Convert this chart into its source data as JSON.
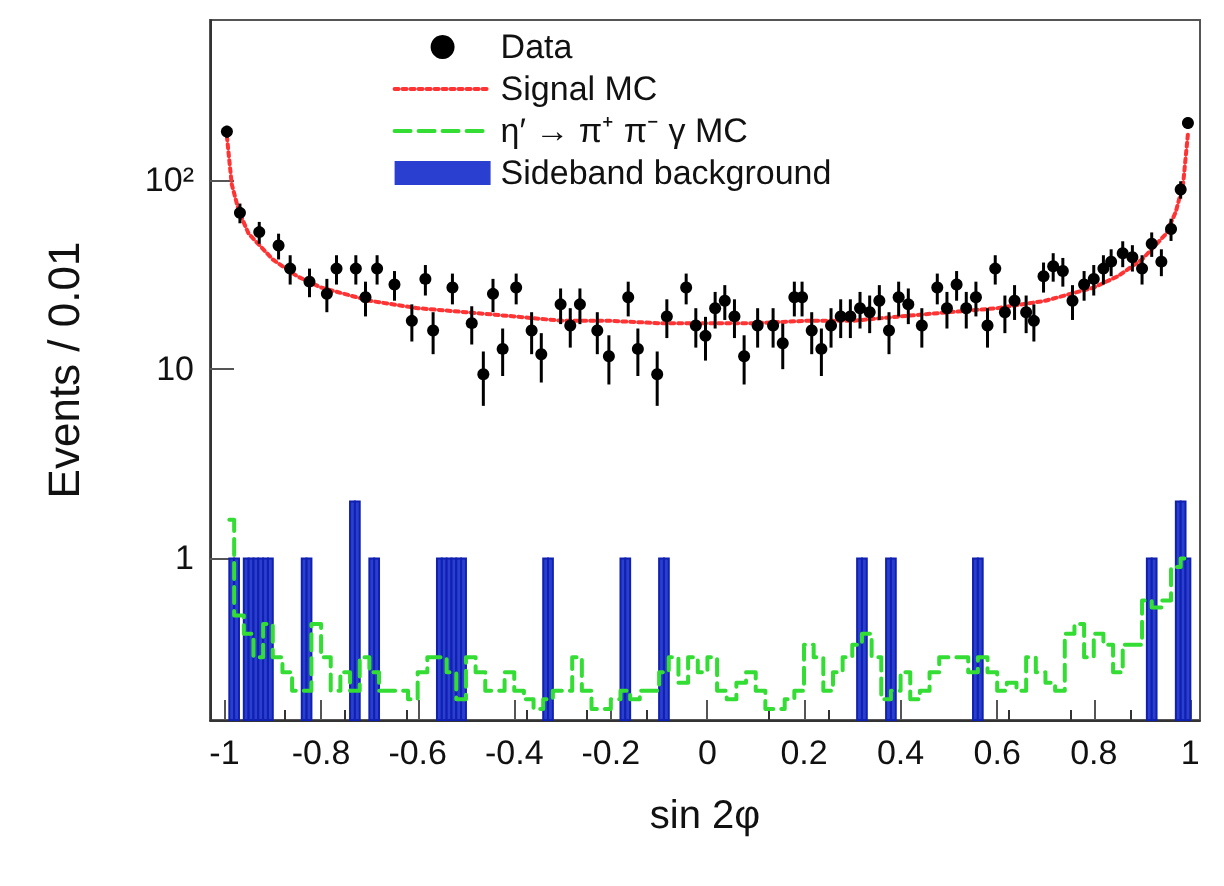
{
  "chart_data": {
    "type": "scatter",
    "xlabel": "sin 2φ",
    "ylabel": "Events / 0.01",
    "xlim": [
      -1.03,
      1.02
    ],
    "xticks": [
      -1,
      -0.8,
      -0.6,
      -0.4,
      -0.2,
      0,
      0.2,
      0.4,
      0.6,
      0.8,
      1
    ],
    "ylim": [
      0.14,
      700
    ],
    "yticks": [
      1,
      10,
      {
        "value": 100,
        "label": "10²"
      }
    ],
    "log": "y",
    "grid": false,
    "legend": "top",
    "series": [
      {
        "name": "Data",
        "color": "#000000",
        "marker": "circle",
        "x": [
          -0.995,
          -0.968,
          -0.928,
          -0.888,
          -0.864,
          -0.824,
          -0.788,
          -0.768,
          -0.728,
          -0.708,
          -0.684,
          -0.648,
          -0.612,
          -0.584,
          -0.568,
          -0.528,
          -0.488,
          -0.464,
          -0.444,
          -0.424,
          -0.396,
          -0.364,
          -0.344,
          -0.304,
          -0.284,
          -0.264,
          -0.228,
          -0.204,
          -0.164,
          -0.144,
          -0.104,
          -0.084,
          -0.044,
          -0.024,
          -0.004,
          0.016,
          0.036,
          0.056,
          0.076,
          0.104,
          0.136,
          0.156,
          0.18,
          0.196,
          0.216,
          0.236,
          0.256,
          0.276,
          0.296,
          0.316,
          0.336,
          0.356,
          0.376,
          0.396,
          0.416,
          0.444,
          0.476,
          0.496,
          0.516,
          0.536,
          0.556,
          0.58,
          0.596,
          0.616,
          0.636,
          0.66,
          0.676,
          0.696,
          0.716,
          0.736,
          0.756,
          0.78,
          0.8,
          0.82,
          0.836,
          0.86,
          0.88,
          0.9,
          0.92,
          0.94,
          0.96,
          0.98,
          0.995
        ],
        "values": [
          180,
          67,
          53,
          45,
          34,
          29,
          25,
          34,
          34,
          24,
          34,
          28,
          18,
          30,
          16,
          27,
          17.5,
          9.4,
          25,
          12.8,
          27,
          16,
          12,
          22,
          17,
          22,
          16,
          11.7,
          24,
          12.8,
          9.4,
          19,
          27,
          17,
          15,
          21,
          23,
          19,
          11.7,
          17,
          17,
          13.7,
          24,
          24,
          16,
          12.8,
          17,
          19,
          19,
          21,
          20,
          23,
          16,
          24,
          22,
          17,
          27,
          21,
          28,
          21,
          24,
          17,
          34,
          20,
          23,
          20,
          18,
          31,
          35,
          33,
          23,
          28,
          30,
          34,
          37,
          41,
          39,
          34,
          46,
          37,
          55,
          89,
          200
        ],
        "errors": [
          13,
          8,
          7,
          7,
          6,
          5,
          5,
          6,
          6,
          5,
          6,
          5,
          4,
          5.5,
          4,
          5,
          4,
          3,
          5,
          3.6,
          5,
          4,
          3.5,
          4.7,
          4,
          4.7,
          4,
          3.4,
          5,
          3.6,
          3,
          4.4,
          5,
          4,
          3.9,
          4.6,
          4.8,
          4.4,
          3.4,
          4,
          4,
          3.7,
          5,
          5,
          4,
          3.6,
          4,
          4.4,
          4.4,
          4.6,
          4.5,
          4.8,
          4,
          5,
          4.7,
          4,
          5,
          4.6,
          5,
          4.6,
          5,
          4,
          6,
          4.5,
          4.8,
          4.5,
          4,
          5.6,
          6,
          5.7,
          4.8,
          5,
          5.5,
          6,
          6,
          6.4,
          6.2,
          6,
          6.8,
          6,
          7.4,
          9.4,
          14
        ]
      },
      {
        "name": "Signal MC",
        "type": "line",
        "color": "#ff3333",
        "line_style": "dotted",
        "x": [
          -0.995,
          -0.985,
          -0.97,
          -0.95,
          -0.9,
          -0.85,
          -0.8,
          -0.7,
          -0.6,
          -0.5,
          -0.4,
          -0.3,
          -0.2,
          -0.1,
          0,
          0.1,
          0.2,
          0.3,
          0.4,
          0.5,
          0.6,
          0.7,
          0.8,
          0.85,
          0.9,
          0.95,
          0.97,
          0.985,
          0.995
        ],
        "values": [
          170,
          95,
          68,
          52,
          38,
          31,
          27,
          23,
          21,
          20,
          19,
          18,
          18,
          17.5,
          17.5,
          17.5,
          18,
          18,
          19,
          20,
          21,
          23,
          27,
          31,
          38,
          52,
          68,
          95,
          175
        ]
      },
      {
        "name": "η′ → π⁺ π⁻ γ MC",
        "type": "step",
        "color": "#33dd33",
        "line_style": "dashed",
        "x": [
          -0.99,
          -0.97,
          -0.95,
          -0.93,
          -0.91,
          -0.89,
          -0.87,
          -0.85,
          -0.83,
          -0.81,
          -0.79,
          -0.77,
          -0.75,
          -0.73,
          -0.71,
          -0.69,
          -0.67,
          -0.65,
          -0.63,
          -0.61,
          -0.59,
          -0.57,
          -0.55,
          -0.53,
          -0.51,
          -0.49,
          -0.47,
          -0.45,
          -0.43,
          -0.41,
          -0.39,
          -0.37,
          -0.35,
          -0.33,
          -0.31,
          -0.29,
          -0.27,
          -0.25,
          -0.23,
          -0.21,
          -0.19,
          -0.17,
          -0.15,
          -0.13,
          -0.11,
          -0.09,
          -0.07,
          -0.05,
          -0.03,
          -0.01,
          0.01,
          0.03,
          0.05,
          0.07,
          0.09,
          0.11,
          0.13,
          0.15,
          0.17,
          0.19,
          0.21,
          0.23,
          0.25,
          0.27,
          0.29,
          0.31,
          0.33,
          0.35,
          0.37,
          0.39,
          0.41,
          0.43,
          0.45,
          0.47,
          0.49,
          0.51,
          0.53,
          0.55,
          0.57,
          0.59,
          0.61,
          0.63,
          0.65,
          0.67,
          0.69,
          0.71,
          0.73,
          0.75,
          0.77,
          0.79,
          0.81,
          0.83,
          0.85,
          0.87,
          0.89,
          0.91,
          0.93,
          0.95,
          0.97,
          0.99
        ],
        "values": [
          1.6,
          0.5,
          0.4,
          0.3,
          0.45,
          0.3,
          0.25,
          0.2,
          0.2,
          0.45,
          0.3,
          0.2,
          0.25,
          0.2,
          0.3,
          0.25,
          0.2,
          0.2,
          0.2,
          0.18,
          0.25,
          0.3,
          0.3,
          0.25,
          0.18,
          0.3,
          0.25,
          0.2,
          0.2,
          0.25,
          0.2,
          0.18,
          0.16,
          0.18,
          0.2,
          0.2,
          0.3,
          0.2,
          0.16,
          0.16,
          0.18,
          0.2,
          0.18,
          0.2,
          0.2,
          0.25,
          0.3,
          0.22,
          0.3,
          0.25,
          0.3,
          0.2,
          0.18,
          0.22,
          0.25,
          0.2,
          0.16,
          0.16,
          0.18,
          0.2,
          0.35,
          0.3,
          0.2,
          0.25,
          0.3,
          0.35,
          0.4,
          0.3,
          0.18,
          0.2,
          0.25,
          0.18,
          0.2,
          0.25,
          0.3,
          0.3,
          0.3,
          0.25,
          0.3,
          0.25,
          0.2,
          0.22,
          0.2,
          0.3,
          0.25,
          0.22,
          0.2,
          0.4,
          0.45,
          0.3,
          0.4,
          0.35,
          0.25,
          0.35,
          0.35,
          0.6,
          0.55,
          0.6,
          0.9,
          1.0
        ]
      },
      {
        "name": "Sideband background",
        "type": "bar",
        "color": "#2a3fd0",
        "x": [
          -0.985,
          -0.975,
          -0.955,
          -0.945,
          -0.935,
          -0.925,
          -0.915,
          -0.905,
          -0.835,
          -0.825,
          -0.735,
          -0.725,
          -0.695,
          -0.685,
          -0.555,
          -0.545,
          -0.535,
          -0.525,
          -0.515,
          -0.505,
          -0.335,
          -0.325,
          -0.175,
          -0.165,
          -0.095,
          -0.085,
          0.315,
          0.325,
          0.375,
          0.385,
          0.555,
          0.565,
          0.915,
          0.925,
          0.975,
          0.985,
          0.995
        ],
        "values": [
          1,
          1,
          1,
          1,
          1,
          1,
          1,
          1,
          1,
          1,
          2,
          2,
          1,
          1,
          1,
          1,
          1,
          1,
          1,
          1,
          1,
          1,
          1,
          1,
          1,
          1,
          1,
          1,
          1,
          1,
          1,
          1,
          1,
          1,
          2,
          2,
          1
        ]
      }
    ]
  }
}
